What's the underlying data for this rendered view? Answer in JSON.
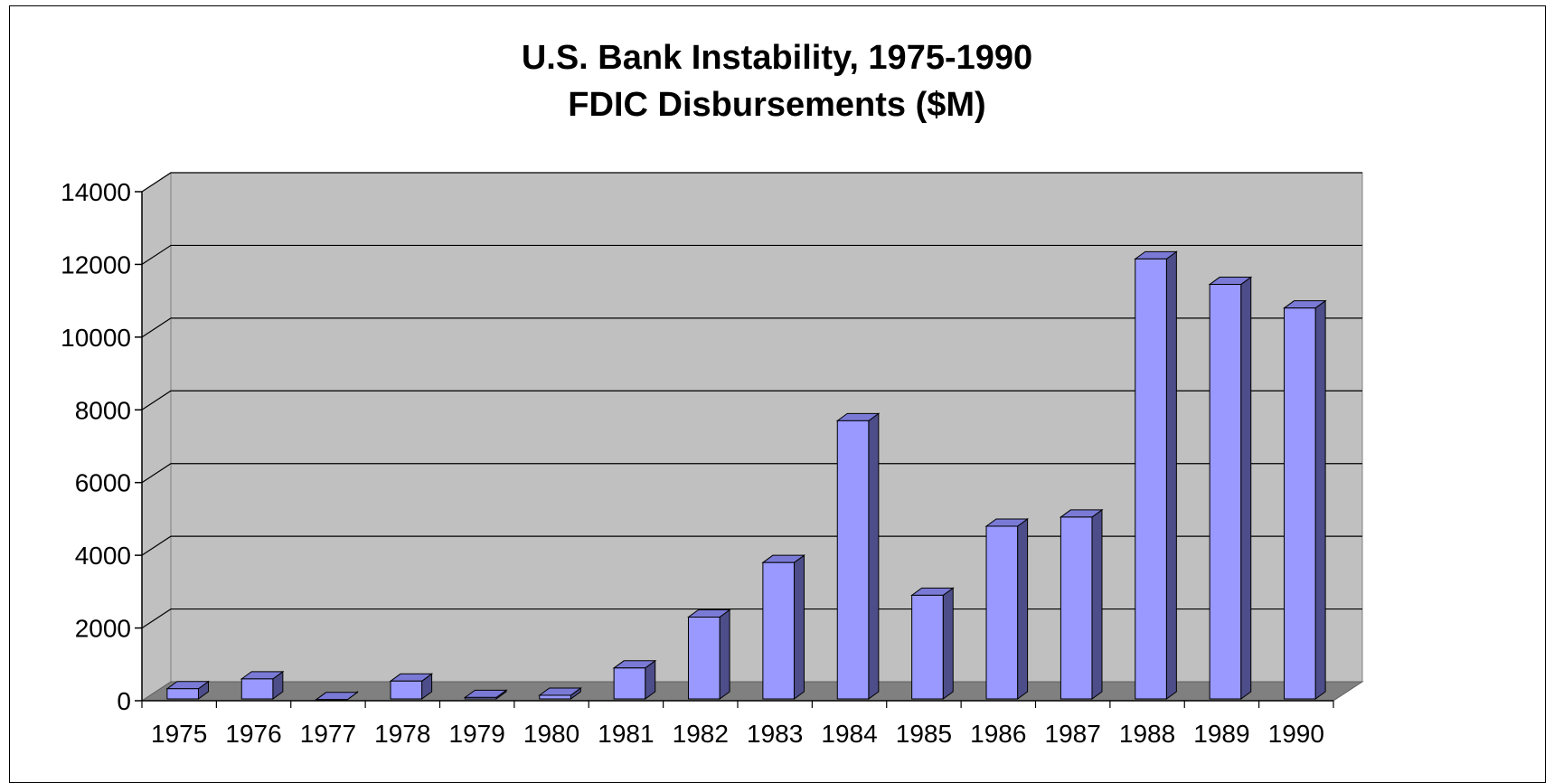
{
  "chart_data": {
    "type": "bar",
    "title": "U.S. Bank Instability, 1975-1990",
    "subtitle": "FDIC Disbursements ($M)",
    "categories": [
      "1975",
      "1976",
      "1977",
      "1978",
      "1979",
      "1980",
      "1981",
      "1982",
      "1983",
      "1984",
      "1985",
      "1986",
      "1987",
      "1988",
      "1989",
      "1990"
    ],
    "values": [
      330,
      600,
      30,
      540,
      90,
      150,
      900,
      2300,
      3800,
      7700,
      2900,
      4800,
      5050,
      12150,
      11450,
      10800
    ],
    "ylim": [
      0,
      14000
    ],
    "yticks": [
      "0",
      "2000",
      "4000",
      "6000",
      "8000",
      "10000",
      "12000",
      "14000"
    ],
    "grid": true,
    "style": "3d",
    "colors": {
      "bar_front": "#9999ff",
      "bar_side": "#4d4d8a",
      "bar_top": "#7a7ad6",
      "wall": "#c0c0c0",
      "floor": "#808080"
    }
  }
}
